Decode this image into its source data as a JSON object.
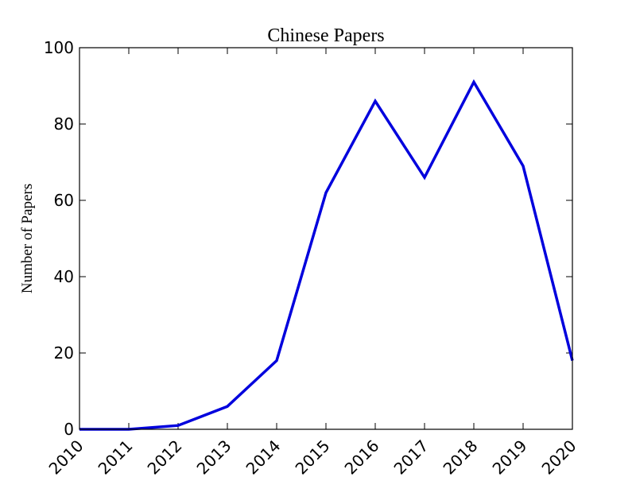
{
  "chart_data": {
    "type": "line",
    "title": "Chinese Papers",
    "xlabel": "",
    "ylabel": "Number of Papers",
    "x": [
      2010,
      2011,
      2012,
      2013,
      2014,
      2015,
      2016,
      2017,
      2018,
      2019,
      2020
    ],
    "xlim": [
      2010,
      2020
    ],
    "ylim": [
      0,
      100
    ],
    "yticks": [
      0,
      20,
      40,
      60,
      80,
      100
    ],
    "xticks": [
      "2010",
      "2011",
      "2012",
      "2013",
      "2014",
      "2015",
      "2016",
      "2017",
      "2018",
      "2019",
      "2020"
    ],
    "grid": false,
    "series": [
      {
        "values": [
          0,
          0,
          1,
          6,
          18,
          62,
          86,
          66,
          91,
          69,
          18
        ],
        "color": "#0000dd"
      }
    ]
  }
}
